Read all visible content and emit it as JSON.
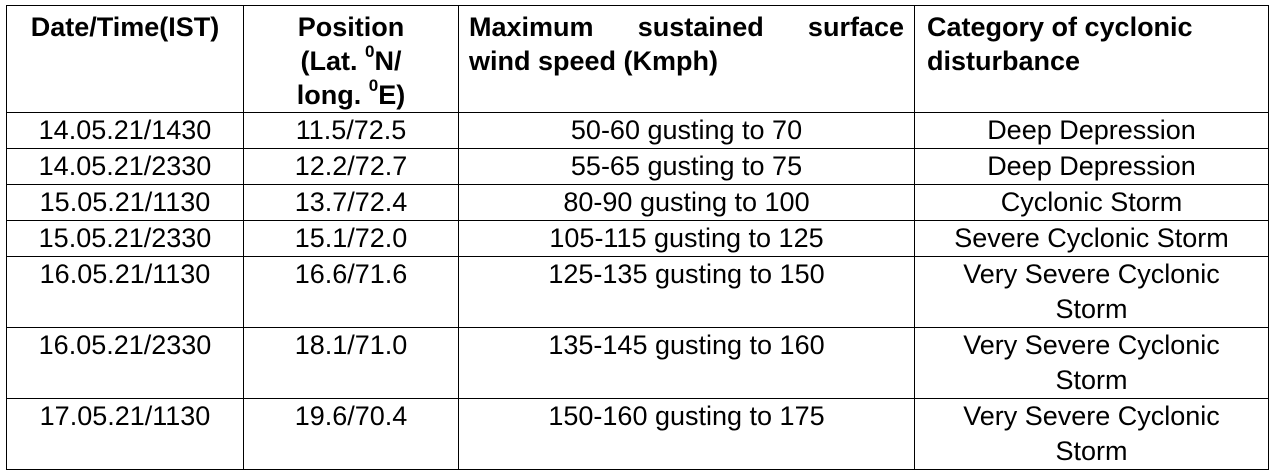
{
  "headers": {
    "datetime": "Date/Time(IST)",
    "position_line1": "Position",
    "position_line2_pre": "(Lat. ",
    "position_line2_sup": "0",
    "position_line2_post": "N/",
    "position_line3_pre": "long. ",
    "position_line3_sup": "0",
    "position_line3_post": "E)",
    "wind_line1": "Maximum sustained surface",
    "wind_line2": "wind speed (Kmph)",
    "category_line1": "Category of cyclonic",
    "category_line2": "disturbance"
  },
  "rows": [
    {
      "datetime": "14.05.21/1430",
      "position": "11.5/72.5",
      "wind": "50-60 gusting to 70",
      "category": "Deep Depression",
      "category2": ""
    },
    {
      "datetime": "14.05.21/2330",
      "position": "12.2/72.7",
      "wind": "55-65 gusting to 75",
      "category": "Deep Depression",
      "category2": ""
    },
    {
      "datetime": "15.05.21/1130",
      "position": "13.7/72.4",
      "wind": "80-90 gusting to 100",
      "category": "Cyclonic Storm",
      "category2": ""
    },
    {
      "datetime": "15.05.21/2330",
      "position": "15.1/72.0",
      "wind": "105-115 gusting to 125",
      "category": "Severe Cyclonic Storm",
      "category2": ""
    },
    {
      "datetime": "16.05.21/1130",
      "position": "16.6/71.6",
      "wind": "125-135 gusting to 150",
      "category": "Very Severe Cyclonic",
      "category2": "Storm"
    },
    {
      "datetime": "16.05.21/2330",
      "position": "18.1/71.0",
      "wind": "135-145 gusting to 160",
      "category": "Very Severe Cyclonic",
      "category2": "Storm"
    },
    {
      "datetime": "17.05.21/1130",
      "position": "19.6/70.4",
      "wind": "150-160 gusting to 175",
      "category": "Very Severe Cyclonic",
      "category2": "Storm"
    }
  ]
}
